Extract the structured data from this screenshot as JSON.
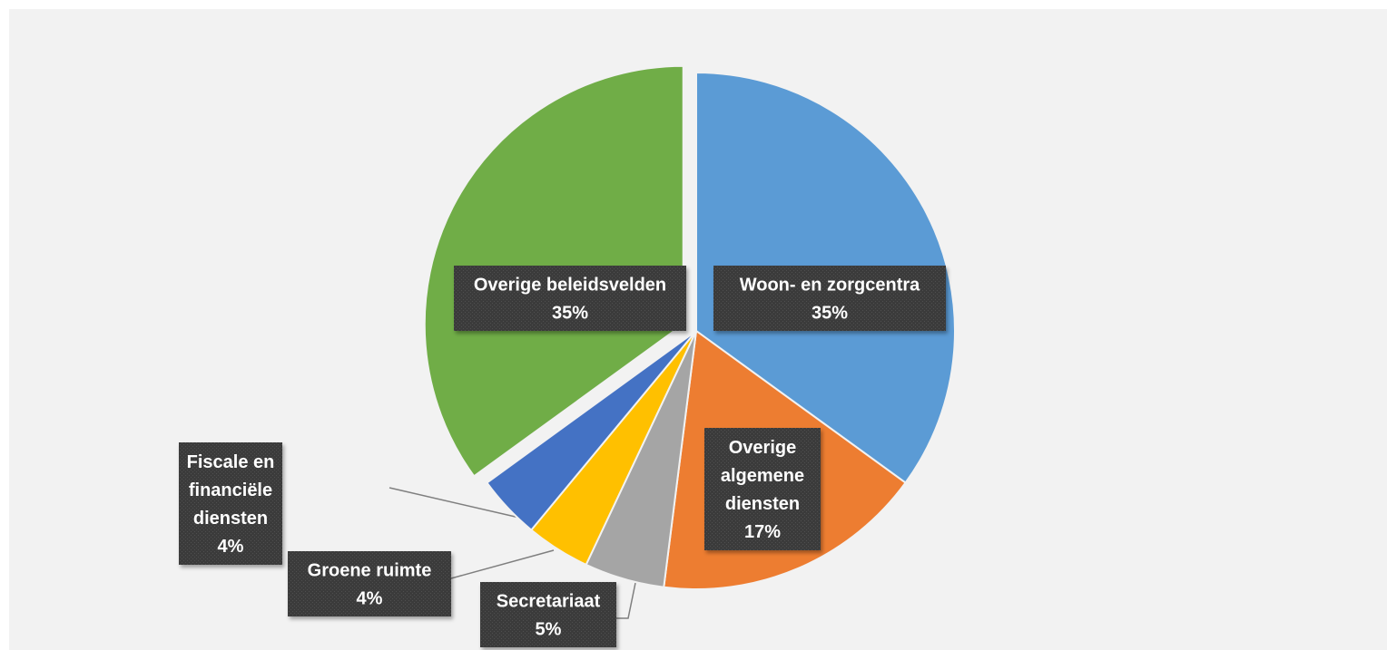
{
  "chart_data": {
    "type": "pie",
    "title": "",
    "slices": [
      {
        "category": "Woon- en zorgcentra",
        "value": 35,
        "label": "35%",
        "color": "#5b9bd5"
      },
      {
        "category": "Overige algemene diensten",
        "value": 17,
        "label": "17%",
        "color": "#ed7d31"
      },
      {
        "category": "Secretariaat",
        "value": 5,
        "label": "5%",
        "color": "#a5a5a5"
      },
      {
        "category": "Groene ruimte",
        "value": 4,
        "label": "4%",
        "color": "#ffc000"
      },
      {
        "category": "Fiscale en financiële diensten",
        "value": 4,
        "label": "4%",
        "color": "#4472c4"
      },
      {
        "category": "Overige beleidsvelden",
        "value": 35,
        "label": "35%",
        "color": "#70ad47"
      }
    ],
    "legend": "none",
    "label_style": "dark callout boxes with white bold text",
    "label_lines": [
      [
        "Woon- en zorgcentra",
        "35%"
      ],
      [
        "Overige",
        "algemene",
        "diensten",
        "17%"
      ],
      [
        "Secretariaat",
        "5%"
      ],
      [
        "Groene ruimte",
        "4%"
      ],
      [
        "Fiscale en",
        "financiële",
        "diensten",
        "4%"
      ],
      [
        "Overige beleidsvelden",
        "35%"
      ]
    ]
  }
}
